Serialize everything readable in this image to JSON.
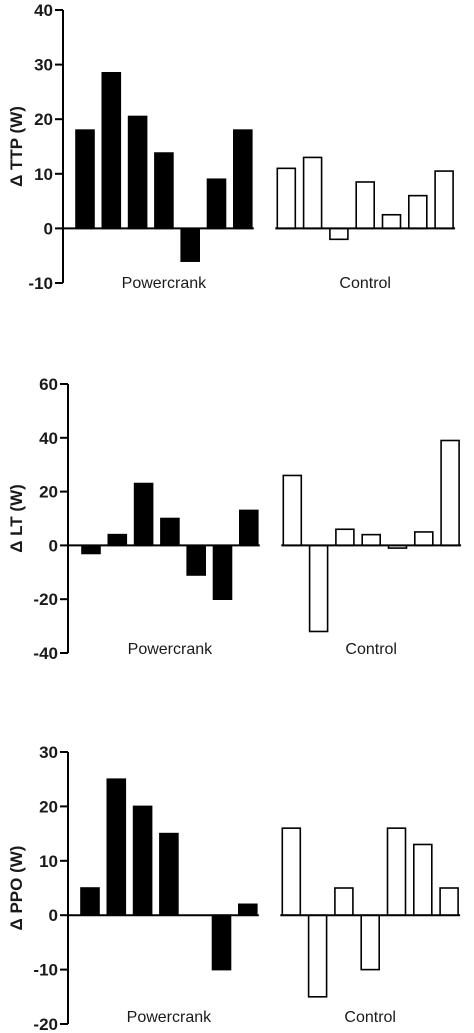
{
  "figure": {
    "background": "#ffffff",
    "ink": "#000000"
  },
  "chart_data": [
    {
      "type": "bar",
      "ylabel": "Δ TTP (W)",
      "ylim": [
        -10,
        40
      ],
      "yticks": [
        -10,
        0,
        10,
        20,
        30,
        40
      ],
      "groups": [
        {
          "name": "Powercrank",
          "fill": "#000000",
          "values": [
            18,
            28.5,
            20.5,
            13.8,
            -6,
            9,
            18
          ]
        },
        {
          "name": "Control",
          "fill": "#ffffff",
          "values": [
            11,
            13,
            -2,
            8.5,
            2.5,
            6,
            10.5
          ]
        }
      ]
    },
    {
      "type": "bar",
      "ylabel": "Δ LT (W)",
      "ylim": [
        -40,
        60
      ],
      "yticks": [
        -40,
        -20,
        0,
        20,
        40,
        60
      ],
      "groups": [
        {
          "name": "Powercrank",
          "fill": "#000000",
          "values": [
            -3,
            4,
            23,
            10,
            -11,
            -20,
            13
          ]
        },
        {
          "name": "Control",
          "fill": "#ffffff",
          "values": [
            26,
            -32,
            6,
            4,
            -1,
            5,
            39
          ]
        }
      ]
    },
    {
      "type": "bar",
      "ylabel": "Δ PPO (W)",
      "ylim": [
        -20,
        30
      ],
      "yticks": [
        -20,
        -10,
        0,
        10,
        20,
        30
      ],
      "groups": [
        {
          "name": "Powercrank",
          "fill": "#000000",
          "values": [
            5,
            25,
            20,
            15,
            0,
            -10,
            2
          ]
        },
        {
          "name": "Control",
          "fill": "#ffffff",
          "values": [
            16,
            -15,
            5,
            -10,
            16,
            13,
            5
          ]
        }
      ]
    }
  ]
}
